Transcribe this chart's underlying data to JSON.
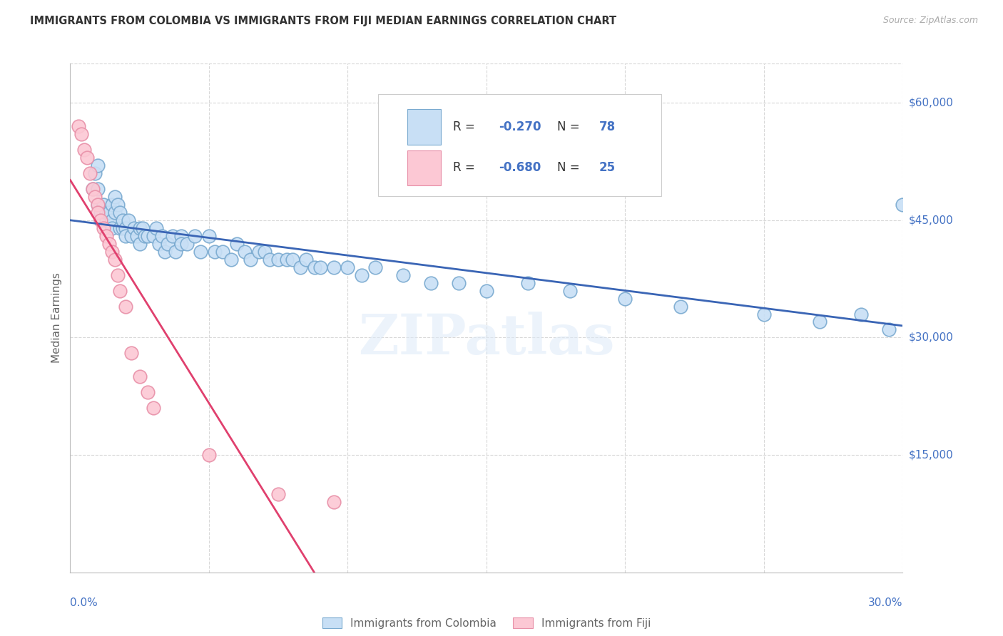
{
  "title": "IMMIGRANTS FROM COLOMBIA VS IMMIGRANTS FROM FIJI MEDIAN EARNINGS CORRELATION CHART",
  "source": "Source: ZipAtlas.com",
  "ylabel": "Median Earnings",
  "legend_colombia": "Immigrants from Colombia",
  "legend_fiji": "Immigrants from Fiji",
  "ytick_labels": [
    "$15,000",
    "$30,000",
    "$45,000",
    "$60,000"
  ],
  "ytick_values": [
    15000,
    30000,
    45000,
    60000
  ],
  "xmin": 0.0,
  "xmax": 0.3,
  "ymin": 0,
  "ymax": 65000,
  "color_colombia_face": "#c8dff5",
  "color_colombia_edge": "#7aaad0",
  "color_fiji_face": "#fcc8d4",
  "color_fiji_edge": "#e890a8",
  "line_colombia": "#3a65b5",
  "line_fiji": "#e0406e",
  "line_fiji_dashed": "#e0a0b8",
  "watermark": "ZIPatlas",
  "colombia_x": [
    0.008,
    0.009,
    0.01,
    0.01,
    0.01,
    0.011,
    0.012,
    0.013,
    0.013,
    0.014,
    0.015,
    0.015,
    0.015,
    0.016,
    0.016,
    0.017,
    0.018,
    0.018,
    0.019,
    0.019,
    0.02,
    0.02,
    0.021,
    0.022,
    0.023,
    0.024,
    0.025,
    0.025,
    0.026,
    0.027,
    0.028,
    0.03,
    0.031,
    0.032,
    0.033,
    0.034,
    0.035,
    0.037,
    0.038,
    0.04,
    0.04,
    0.042,
    0.045,
    0.047,
    0.05,
    0.052,
    0.055,
    0.058,
    0.06,
    0.063,
    0.065,
    0.068,
    0.07,
    0.072,
    0.075,
    0.078,
    0.08,
    0.083,
    0.085,
    0.088,
    0.09,
    0.095,
    0.1,
    0.105,
    0.11,
    0.12,
    0.13,
    0.14,
    0.15,
    0.165,
    0.18,
    0.2,
    0.22,
    0.25,
    0.27,
    0.285,
    0.295,
    0.3
  ],
  "colombia_y": [
    49000,
    51000,
    47000,
    49000,
    52000,
    46000,
    47000,
    45000,
    46000,
    46000,
    45000,
    47000,
    44000,
    46000,
    48000,
    47000,
    44000,
    46000,
    44000,
    45000,
    44000,
    43000,
    45000,
    43000,
    44000,
    43000,
    44000,
    42000,
    44000,
    43000,
    43000,
    43000,
    44000,
    42000,
    43000,
    41000,
    42000,
    43000,
    41000,
    43000,
    42000,
    42000,
    43000,
    41000,
    43000,
    41000,
    41000,
    40000,
    42000,
    41000,
    40000,
    41000,
    41000,
    40000,
    40000,
    40000,
    40000,
    39000,
    40000,
    39000,
    39000,
    39000,
    39000,
    38000,
    39000,
    38000,
    37000,
    37000,
    36000,
    37000,
    36000,
    35000,
    34000,
    33000,
    32000,
    33000,
    31000,
    47000
  ],
  "fiji_x": [
    0.003,
    0.004,
    0.005,
    0.006,
    0.007,
    0.008,
    0.009,
    0.01,
    0.01,
    0.011,
    0.012,
    0.013,
    0.014,
    0.015,
    0.016,
    0.017,
    0.018,
    0.02,
    0.022,
    0.025,
    0.028,
    0.03,
    0.05,
    0.075,
    0.095
  ],
  "fiji_y": [
    57000,
    56000,
    54000,
    53000,
    51000,
    49000,
    48000,
    47000,
    46000,
    45000,
    44000,
    43000,
    42000,
    41000,
    40000,
    38000,
    36000,
    34000,
    28000,
    25000,
    23000,
    21000,
    15000,
    10000,
    9000
  ]
}
